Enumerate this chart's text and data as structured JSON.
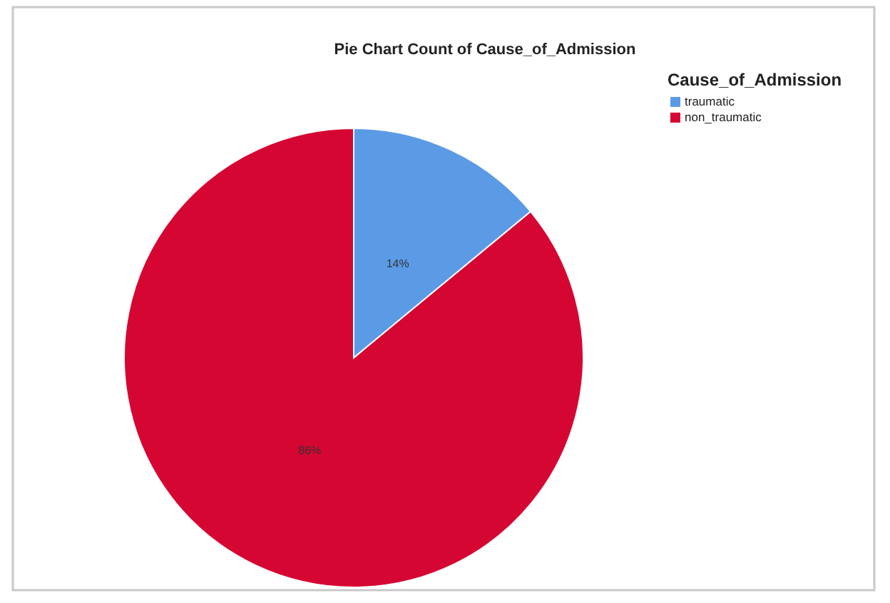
{
  "chart_data": {
    "type": "pie",
    "title": "Pie Chart Count of Cause_of_Admission",
    "legend_title": "Cause_of_Admission",
    "legend": "top right",
    "categories": [
      "traumatic",
      "non_traumatic"
    ],
    "values": [
      14,
      86
    ],
    "colors": [
      "#5b9be6",
      "#d60632"
    ],
    "value_labels": [
      "14%",
      "86%"
    ]
  }
}
